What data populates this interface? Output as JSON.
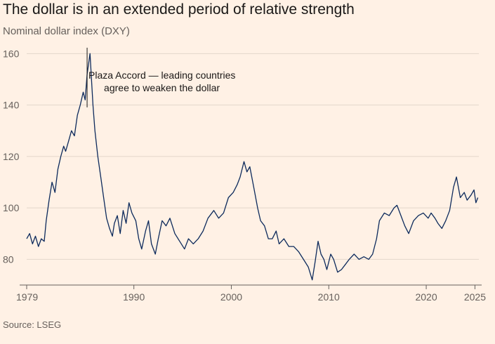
{
  "header": {
    "title": "The dollar is in an extended period of relative strength",
    "subtitle": "Nominal dollar index (DXY)"
  },
  "footer": {
    "source": "Source: LSEG"
  },
  "colors": {
    "background": "#FFF1E5",
    "line": "#0D2A5C",
    "grid": "#E3D6CA",
    "text": "#66605C"
  },
  "chart_data": {
    "type": "line",
    "title": "The dollar is in an extended period of relative strength",
    "subtitle": "Nominal dollar index (DXY)",
    "xlabel": "",
    "ylabel": "",
    "xlim": [
      1979,
      2025.4
    ],
    "ylim": [
      70,
      165
    ],
    "grid": true,
    "x_ticks": [
      1979,
      1990,
      2000,
      2010,
      2020,
      2025
    ],
    "x_tick_labels": [
      "1979",
      "1990",
      "2000",
      "2010",
      "2020",
      "2025"
    ],
    "y_ticks": [
      80,
      100,
      120,
      140,
      160
    ],
    "y_tick_labels": [
      "80",
      "100",
      "120",
      "140",
      "160"
    ],
    "annotations": [
      {
        "x": 1985.2,
        "y": 150,
        "lines": [
          "Plaza Accord — leading countries",
          "agree to weaken the dollar"
        ]
      }
    ],
    "series": [
      {
        "name": "DXY",
        "x": [
          1979.0,
          1979.3,
          1979.6,
          1979.9,
          1980.2,
          1980.5,
          1980.8,
          1981.0,
          1981.3,
          1981.6,
          1981.9,
          1982.2,
          1982.5,
          1982.8,
          1983.0,
          1983.3,
          1983.6,
          1983.9,
          1984.2,
          1984.5,
          1984.8,
          1985.0,
          1985.2,
          1985.5,
          1985.8,
          1986.0,
          1986.3,
          1986.6,
          1986.9,
          1987.2,
          1987.5,
          1987.8,
          1988.0,
          1988.3,
          1988.6,
          1988.9,
          1989.2,
          1989.5,
          1989.8,
          1990.2,
          1990.5,
          1990.8,
          1991.2,
          1991.5,
          1991.8,
          1992.2,
          1992.5,
          1992.9,
          1993.3,
          1993.7,
          1994.2,
          1994.7,
          1995.2,
          1995.6,
          1996.1,
          1996.6,
          1997.1,
          1997.6,
          1998.2,
          1998.7,
          1999.2,
          1999.7,
          2000.2,
          2000.6,
          2000.9,
          2001.3,
          2001.6,
          2001.9,
          2002.3,
          2002.7,
          2003.0,
          2003.4,
          2003.8,
          2004.2,
          2004.6,
          2004.9,
          2005.4,
          2005.9,
          2006.4,
          2006.9,
          2007.4,
          2007.9,
          2008.3,
          2008.6,
          2008.9,
          2009.2,
          2009.5,
          2009.8,
          2010.2,
          2010.5,
          2010.9,
          2011.3,
          2011.7,
          2012.1,
          2012.6,
          2013.1,
          2013.6,
          2014.1,
          2014.5,
          2014.9,
          2015.2,
          2015.7,
          2016.2,
          2016.7,
          2017.0,
          2017.4,
          2017.8,
          2018.2,
          2018.7,
          2019.2,
          2019.7,
          2020.2,
          2020.5,
          2020.9,
          2021.2,
          2021.6,
          2022.0,
          2022.4,
          2022.8,
          2023.1,
          2023.5,
          2023.9,
          2024.2,
          2024.6,
          2024.9,
          2025.1,
          2025.3
        ],
        "values": [
          88,
          90,
          86,
          89,
          85,
          88,
          87,
          95,
          103,
          110,
          106,
          115,
          120,
          124,
          122,
          126,
          130,
          128,
          136,
          140,
          145,
          142,
          152,
          160,
          140,
          130,
          120,
          112,
          104,
          96,
          92,
          89,
          94,
          97,
          90,
          99,
          94,
          102,
          98,
          95,
          88,
          84,
          91,
          95,
          86,
          82,
          88,
          95,
          93,
          96,
          90,
          87,
          84,
          88,
          86,
          88,
          91,
          96,
          99,
          96,
          98,
          104,
          106,
          109,
          112,
          118,
          114,
          116,
          108,
          100,
          95,
          93,
          88,
          88,
          91,
          86,
          88,
          85,
          85,
          83,
          80,
          77,
          72,
          79,
          87,
          82,
          80,
          76,
          82,
          80,
          75,
          76,
          78,
          80,
          82,
          80,
          81,
          80,
          82,
          88,
          95,
          98,
          97,
          100,
          101,
          97,
          93,
          90,
          95,
          97,
          98,
          96,
          98,
          96,
          94,
          92,
          95,
          99,
          108,
          112,
          104,
          106,
          103,
          105,
          107,
          102,
          104
        ]
      }
    ]
  }
}
